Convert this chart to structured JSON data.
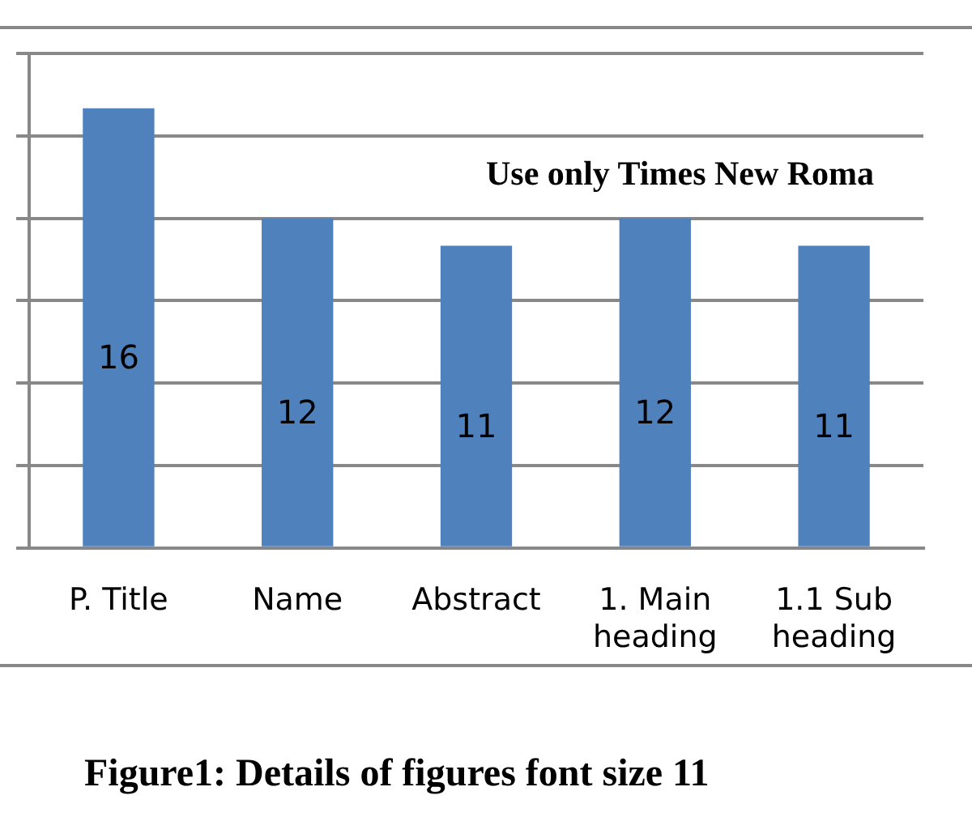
{
  "chart_data": {
    "type": "bar",
    "categories": [
      "P. Title",
      "Name",
      "Abstract",
      "1. Main heading",
      "1.1 Sub heading"
    ],
    "values": [
      16,
      12,
      11,
      12,
      11
    ],
    "color": "#4f81bd",
    "data_labels": true,
    "ylim": [
      0,
      18
    ],
    "yticks": [
      {
        "value": 0,
        "label": null
      },
      {
        "value": 3,
        "label": null
      },
      {
        "value": 6,
        "label": null
      },
      {
        "value": 9,
        "label": null
      },
      {
        "value": 12,
        "label": null
      },
      {
        "value": 15,
        "label": null
      },
      {
        "value": 18,
        "label": null
      }
    ],
    "tick_labels": "x",
    "grid": "y",
    "annotations": [
      "Use only Times New Roma",
      "Figure1: Details of figures font size 11"
    ]
  }
}
